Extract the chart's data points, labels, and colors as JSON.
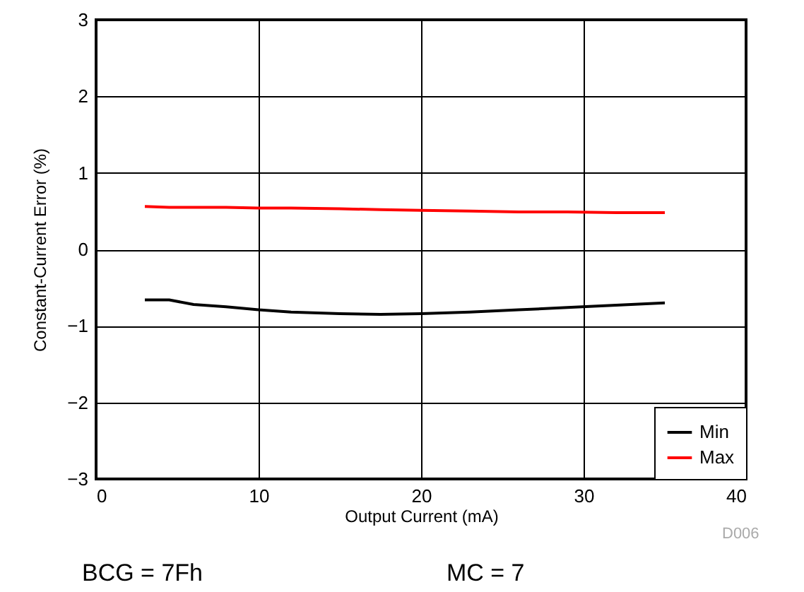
{
  "chart_data": {
    "type": "line",
    "xlabel": "Output Current (mA)",
    "ylabel": "Constant-Current Error (%)",
    "x": [
      3,
      4.5,
      6,
      8,
      10,
      12,
      15,
      17.5,
      20,
      23,
      26,
      29,
      32,
      35
    ],
    "series": [
      {
        "name": "Min",
        "color": "#000000",
        "values": [
          -0.66,
          -0.66,
          -0.72,
          -0.75,
          -0.79,
          -0.82,
          -0.84,
          -0.85,
          -0.84,
          -0.82,
          -0.79,
          -0.76,
          -0.73,
          -0.7
        ]
      },
      {
        "name": "Max",
        "color": "#ff0000",
        "values": [
          0.56,
          0.55,
          0.55,
          0.55,
          0.54,
          0.54,
          0.53,
          0.52,
          0.51,
          0.5,
          0.49,
          0.49,
          0.48,
          0.48
        ]
      }
    ],
    "xlim": [
      0,
      40
    ],
    "xticks": [
      0,
      10,
      20,
      30,
      40
    ],
    "ylim": [
      -3,
      3
    ],
    "yticks": [
      -3,
      -2,
      -1,
      0,
      1,
      2,
      3
    ],
    "grid": true,
    "legend": "bottom right",
    "marker": "none",
    "line_style": "solid",
    "annotations": [
      "D006",
      "BCG = 7Fh",
      "MC = 7"
    ]
  }
}
